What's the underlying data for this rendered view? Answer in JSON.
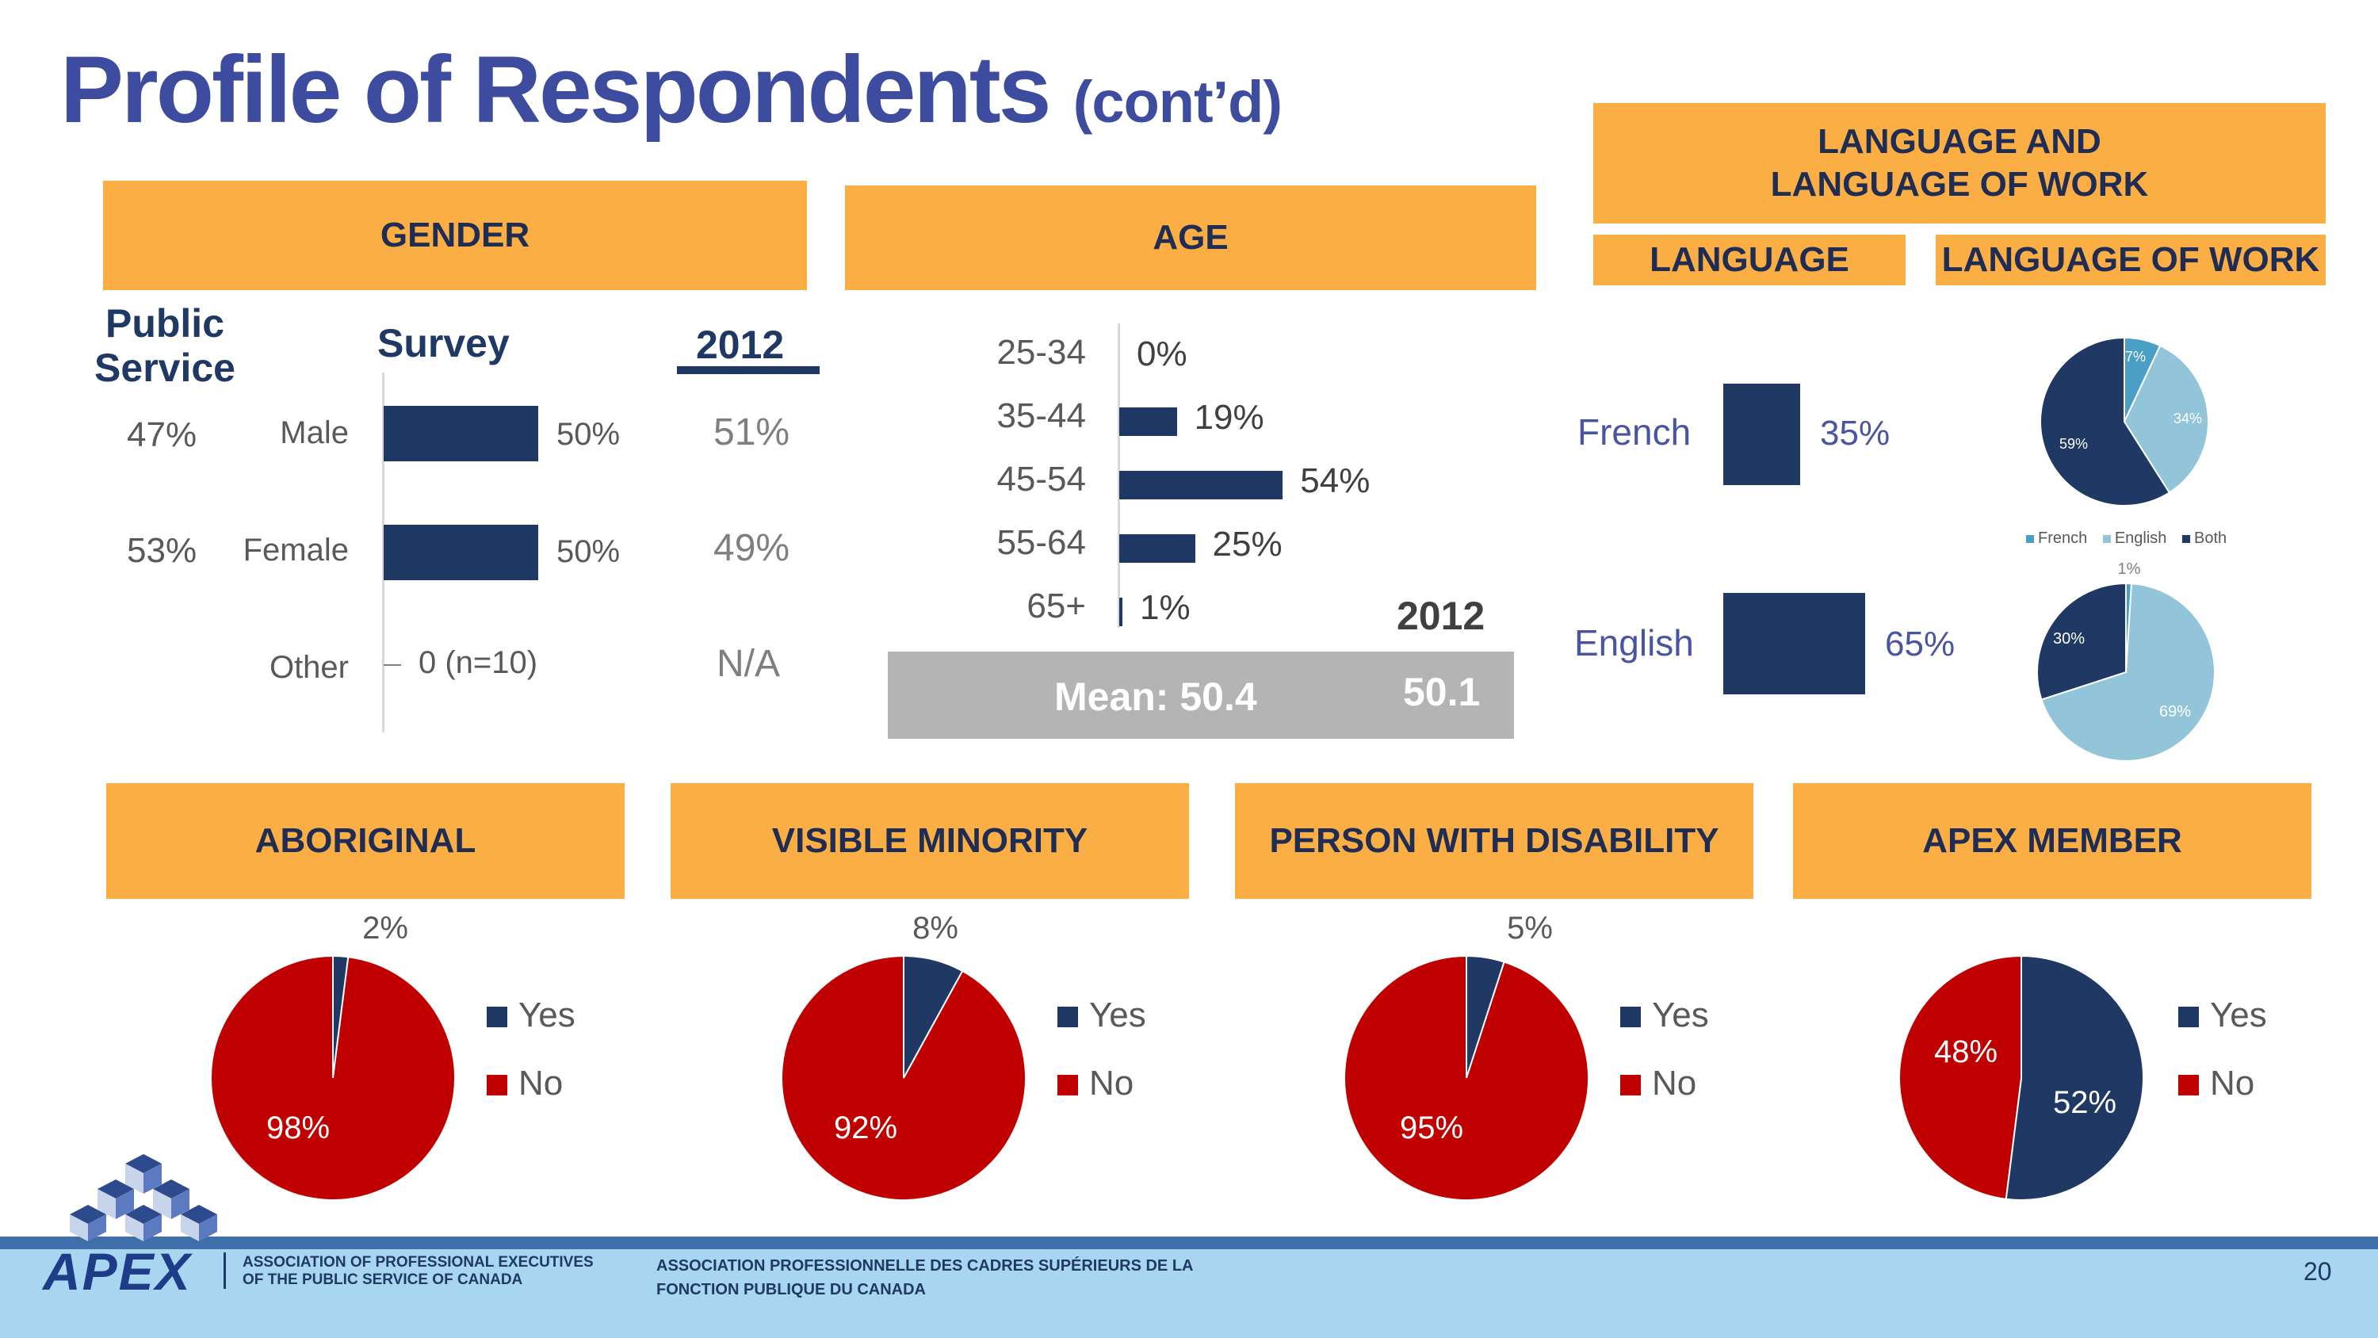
{
  "title": {
    "main": "Profile of Respondents",
    "sub": "(cont’d)"
  },
  "headers": {
    "gender": "GENDER",
    "age": "AGE",
    "language_and_work_line1": "LANGUAGE AND",
    "language_and_work_line2": "LANGUAGE OF WORK",
    "language": "LANGUAGE",
    "language_of_work": "LANGUAGE OF WORK",
    "aboriginal": "ABORIGINAL",
    "visible_minority": "VISIBLE MINORITY",
    "disability": "PERSON WITH DISABILITY",
    "apex_member": "APEX MEMBER"
  },
  "gender": {
    "col_public_service_1": "Public",
    "col_public_service_2": "Service",
    "col_survey": "Survey",
    "col_2012": "2012",
    "rows": [
      {
        "label": "Male",
        "public_service": "47%",
        "survey_label": "50%",
        "y2012": "51%"
      },
      {
        "label": "Female",
        "public_service": "53%",
        "survey_label": "50%",
        "y2012": "49%"
      },
      {
        "label": "Other",
        "public_service": "",
        "survey_label": "0 (n=10)",
        "y2012": "N/A"
      }
    ]
  },
  "age": {
    "year_label": "2012",
    "mean_label": "Mean: 50.4",
    "mean_2012": "50.1"
  },
  "language": {
    "rows": [
      {
        "label": "French",
        "value_label": "35%"
      },
      {
        "label": "English",
        "value_label": "65%"
      }
    ]
  },
  "language_of_work_legend": [
    "French",
    "English",
    "Both"
  ],
  "pie_legend": {
    "yes": "Yes",
    "no": "No"
  },
  "colors": {
    "navy": "#1f3864",
    "red": "#c00000",
    "orange": "#fbae43",
    "lightblue": "#92c5da",
    "midblue": "#4a9fc7"
  },
  "footer": {
    "logo_text": "APEX",
    "english_line1": "ASSOCIATION OF PROFESSIONAL EXECUTIVES",
    "english_line2": "OF THE PUBLIC SERVICE OF CANADA",
    "french_line1": "ASSOCIATION PROFESSIONNELLE DES CADRES SUPÉRIEURS DE LA",
    "french_line2": "FONCTION PUBLIQUE DU CANADA",
    "page_number": "20"
  },
  "chart_data": [
    {
      "type": "bar",
      "title": "GENDER",
      "categories": [
        "Male",
        "Female",
        "Other"
      ],
      "values": [
        50,
        50,
        0
      ],
      "value_labels": [
        "50%",
        "50%",
        "0 (n=10)"
      ],
      "xlim": [
        0,
        100
      ]
    },
    {
      "type": "bar",
      "title": "AGE",
      "categories": [
        "25-34",
        "35-44",
        "45-54",
        "55-64",
        "65+"
      ],
      "values": [
        0,
        19,
        54,
        25,
        1
      ],
      "value_labels": [
        "0%",
        "19%",
        "54%",
        "25%",
        "1%"
      ],
      "xlim": [
        0,
        100
      ]
    },
    {
      "type": "bar",
      "title": "LANGUAGE",
      "categories": [
        "French",
        "English"
      ],
      "values": [
        35,
        65
      ],
      "value_labels": [
        "35%",
        "65%"
      ],
      "xlim": [
        0,
        100
      ]
    },
    {
      "type": "pie",
      "title": "LANGUAGE OF WORK",
      "categories": [
        "French",
        "English",
        "Both"
      ],
      "values": [
        7,
        34,
        59
      ],
      "value_labels": [
        "7%",
        "34%",
        "59%"
      ]
    },
    {
      "type": "pie",
      "title": "",
      "categories": [
        "French",
        "English",
        "Both"
      ],
      "values": [
        1,
        69,
        30
      ],
      "value_labels": [
        "1%",
        "69%",
        "30%"
      ]
    },
    {
      "type": "pie",
      "title": "ABORIGINAL",
      "categories": [
        "Yes",
        "No"
      ],
      "values": [
        2,
        98
      ],
      "value_labels": [
        "2%",
        "98%"
      ]
    },
    {
      "type": "pie",
      "title": "VISIBLE MINORITY",
      "categories": [
        "Yes",
        "No"
      ],
      "values": [
        8,
        92
      ],
      "value_labels": [
        "8%",
        "92%"
      ]
    },
    {
      "type": "pie",
      "title": "PERSON WITH DISABILITY",
      "categories": [
        "Yes",
        "No"
      ],
      "values": [
        5,
        95
      ],
      "value_labels": [
        "5%",
        "95%"
      ]
    },
    {
      "type": "pie",
      "title": "APEX MEMBER",
      "categories": [
        "Yes",
        "No"
      ],
      "values": [
        52,
        48
      ],
      "value_labels": [
        "52%",
        "48%"
      ]
    }
  ]
}
